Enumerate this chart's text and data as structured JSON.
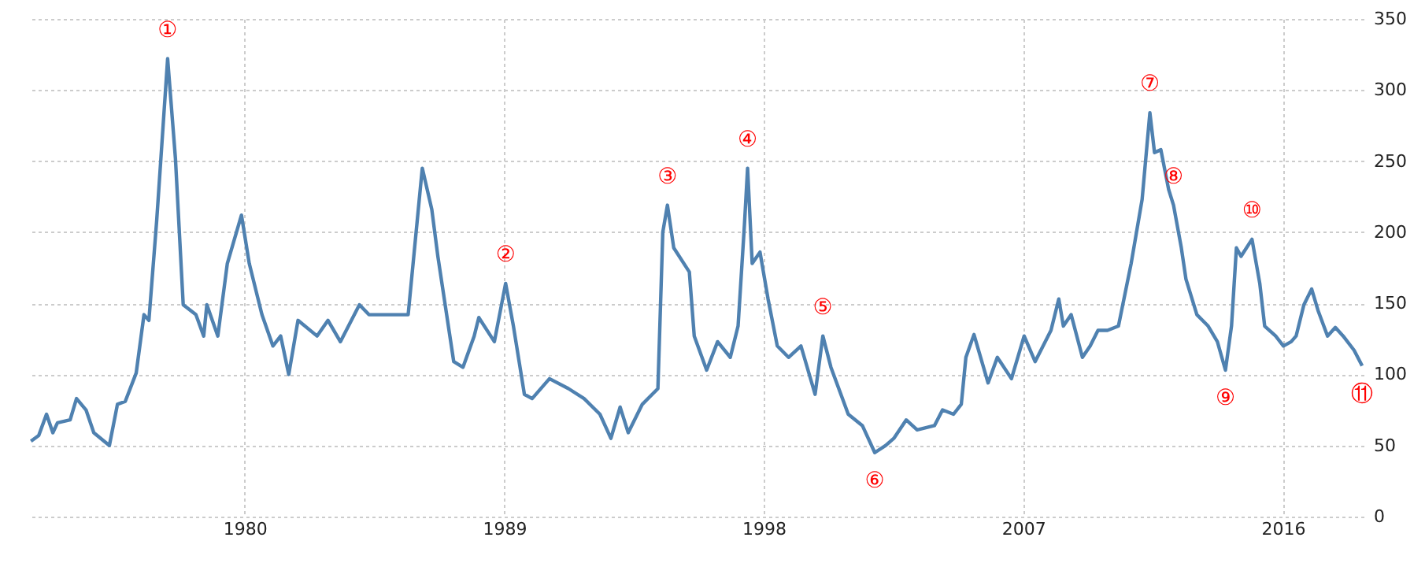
{
  "chart_data": {
    "type": "line",
    "x": [
      1972.59,
      1972.86,
      1973.13,
      1973.35,
      1973.51,
      1973.95,
      1974.17,
      1974.5,
      1974.77,
      1975.31,
      1975.59,
      1975.86,
      1976.24,
      1976.51,
      1976.68,
      1976.95,
      1977.33,
      1977.6,
      1977.87,
      1978.31,
      1978.58,
      1978.69,
      1979.07,
      1979.4,
      1979.89,
      1980.16,
      1980.6,
      1980.98,
      1981.25,
      1981.53,
      1981.85,
      1982.51,
      1982.89,
      1983.32,
      1983.98,
      1984.31,
      1985.07,
      1985.67,
      1986.16,
      1986.49,
      1986.7,
      1987.25,
      1987.57,
      1987.96,
      1988.12,
      1988.66,
      1989.05,
      1989.32,
      1989.7,
      1989.97,
      1990.57,
      1991.23,
      1991.77,
      1992.32,
      1992.7,
      1993.02,
      1993.3,
      1993.79,
      1994.33,
      1994.5,
      1994.66,
      1994.88,
      1995.42,
      1995.59,
      1996.02,
      1996.4,
      1996.84,
      1997.11,
      1997.33,
      1997.44,
      1997.6,
      1997.87,
      1998.15,
      1998.47,
      1998.86,
      1999.29,
      1999.78,
      2000.05,
      2000.33,
      2000.93,
      2001.42,
      2001.85,
      2002.23,
      2002.51,
      2002.94,
      2003.32,
      2003.92,
      2004.2,
      2004.58,
      2004.85,
      2005.01,
      2005.29,
      2005.78,
      2006.1,
      2006.59,
      2007.03,
      2007.41,
      2007.96,
      2008.23,
      2008.39,
      2008.66,
      2009.05,
      2009.32,
      2009.59,
      2009.92,
      2010.3,
      2010.74,
      2011.12,
      2011.39,
      2011.55,
      2011.77,
      2012.04,
      2012.21,
      2012.48,
      2012.64,
      2013.02,
      2013.41,
      2013.73,
      2014.01,
      2014.22,
      2014.39,
      2014.55,
      2014.93,
      2015.2,
      2015.37,
      2015.75,
      2016.02,
      2016.29,
      2016.46,
      2016.73,
      2017.0,
      2017.22,
      2017.55,
      2017.82,
      2018.09,
      2018.47,
      2018.75
    ],
    "series": [
      {
        "color": "#4f81b0",
        "values": [
          53,
          57,
          72,
          59,
          66,
          68,
          83,
          75,
          59,
          50,
          79,
          81,
          101,
          142,
          138,
          208,
          322,
          252,
          149,
          142,
          127,
          149,
          127,
          178,
          212,
          178,
          142,
          120,
          127,
          100,
          138,
          127,
          138,
          123,
          149,
          142,
          142,
          142,
          245,
          216,
          183,
          109,
          105,
          127,
          140,
          123,
          164,
          134,
          86,
          83,
          97,
          90,
          83,
          72,
          55,
          77,
          59,
          79,
          90,
          200,
          219,
          189,
          172,
          127,
          103,
          123,
          112,
          134,
          205,
          245,
          178,
          186,
          153,
          120,
          112,
          120,
          86,
          127,
          105,
          72,
          64,
          45,
          50,
          55,
          68,
          61,
          64,
          75,
          72,
          79,
          112,
          128,
          94,
          112,
          97,
          127,
          109,
          131,
          153,
          134,
          142,
          112,
          120,
          131,
          131,
          134,
          178,
          223,
          284,
          256,
          258,
          230,
          219,
          189,
          167,
          142,
          134,
          123,
          103,
          134,
          189,
          183,
          195,
          164,
          134,
          127,
          120,
          123,
          127,
          149,
          160,
          145,
          127,
          133,
          127,
          117,
          106
        ]
      }
    ],
    "xlim": [
      1972.5,
      2018.8
    ],
    "ylim": [
      0,
      350
    ],
    "xticks": [
      1980,
      1989,
      1998,
      2007,
      2016
    ],
    "yticks": [
      0,
      50,
      100,
      150,
      200,
      250,
      300,
      350
    ],
    "grid": true,
    "marker": "none",
    "line_style": "solid",
    "annotations": [
      {
        "text": "①",
        "x": 1977.33,
        "y": 322
      },
      {
        "text": "②",
        "x": 1989.05,
        "y": 164
      },
      {
        "text": "③",
        "x": 1994.66,
        "y": 219
      },
      {
        "text": "④",
        "x": 1997.44,
        "y": 245
      },
      {
        "text": "⑤",
        "x": 2000.05,
        "y": 127
      },
      {
        "text": "⑥",
        "x": 2001.85,
        "y": 45
      },
      {
        "text": "⑦",
        "x": 2011.39,
        "y": 284
      },
      {
        "text": "⑧",
        "x": 2012.21,
        "y": 219
      },
      {
        "text": "⑨",
        "x": 2014.01,
        "y": 103
      },
      {
        "text": "⑩",
        "x": 2014.93,
        "y": 195
      },
      {
        "text": "⑪",
        "x": 2018.75,
        "y": 106
      }
    ]
  }
}
